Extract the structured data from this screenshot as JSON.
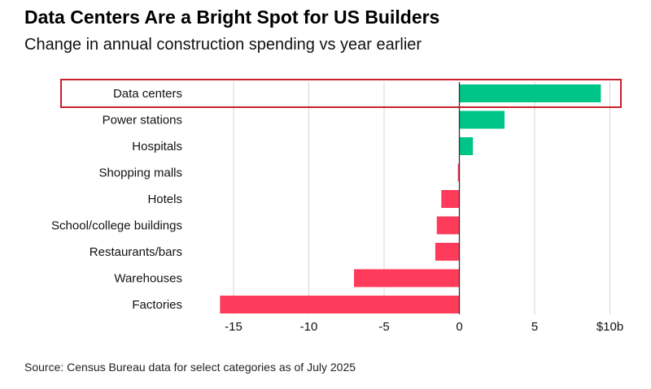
{
  "chart_data": {
    "type": "bar",
    "orientation": "horizontal",
    "title": "Data Centers Are a Bright Spot for US Builders",
    "subtitle": "Change in annual construction spending vs year earlier",
    "categories": [
      "Data centers",
      "Power stations",
      "Hospitals",
      "Shopping malls",
      "Hotels",
      "School/college buildings",
      "Restaurants/bars",
      "Warehouses",
      "Factories"
    ],
    "values": [
      9.4,
      3.0,
      0.9,
      -0.1,
      -1.2,
      -1.5,
      -1.6,
      -7.0,
      -15.9
    ],
    "unit": "$ billions",
    "xlim": [
      -16,
      10.5
    ],
    "xticks": [
      -15,
      -10,
      -5,
      0,
      5,
      10
    ],
    "xtick_labels": [
      "-15",
      "-10",
      "-5",
      "0",
      "5",
      "$10b"
    ],
    "grid": true,
    "highlighted_category": "Data centers",
    "source": "Source: Census Bureau data for select categories as of July 2025"
  },
  "colors": {
    "positive": "#00c589",
    "negative": "#ff3b5c",
    "highlight_box": "#c8202e",
    "grid": "#d4d4d4",
    "zero_line": "#333333"
  }
}
